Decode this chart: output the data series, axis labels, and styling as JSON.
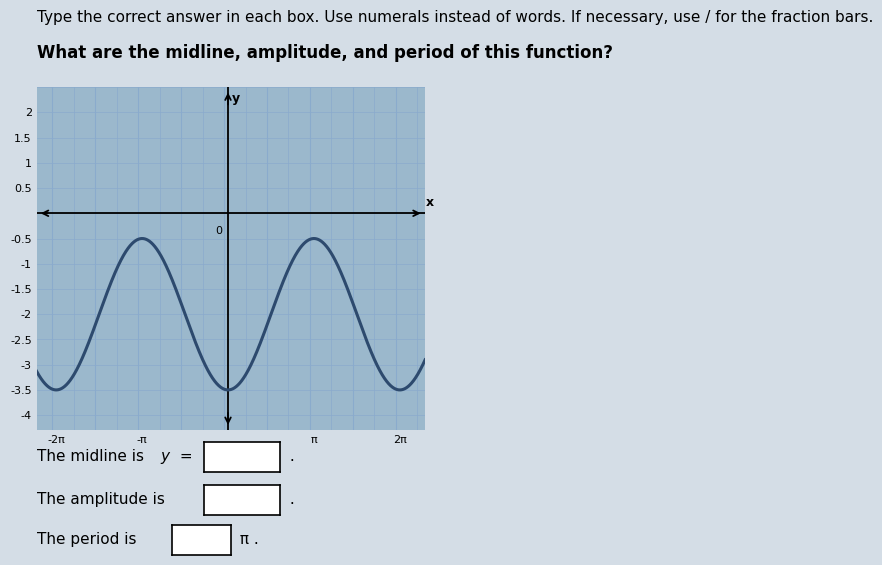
{
  "title_instruction": "Type the correct answer in each box. Use numerals instead of words. If necessary, use / for the fraction bars.",
  "question": "What are the midline, amplitude, and period of this function?",
  "curve_color": "#2d4a6e",
  "grid_color": "#8aabcc",
  "plot_bg": "#9bb8cc",
  "page_bg": "#d4dde6",
  "amplitude": 1.5,
  "midline": -2.0,
  "xlim": [
    -7.0,
    7.2
  ],
  "ylim": [
    -4.3,
    2.5
  ],
  "yticks": [
    2,
    1.5,
    1,
    0.5,
    -0.5,
    -1,
    -1.5,
    -2,
    -2.5,
    -3,
    -3.5,
    -4
  ],
  "xtick_labels": [
    "-2π",
    "-π",
    "",
    "π",
    "2π"
  ],
  "xtick_vals": [
    -6.283185307,
    -3.141592654,
    0,
    3.141592654,
    6.283185307
  ],
  "font_size_title": 11,
  "font_size_question": 12,
  "font_size_labels": 11,
  "font_size_tick": 8
}
